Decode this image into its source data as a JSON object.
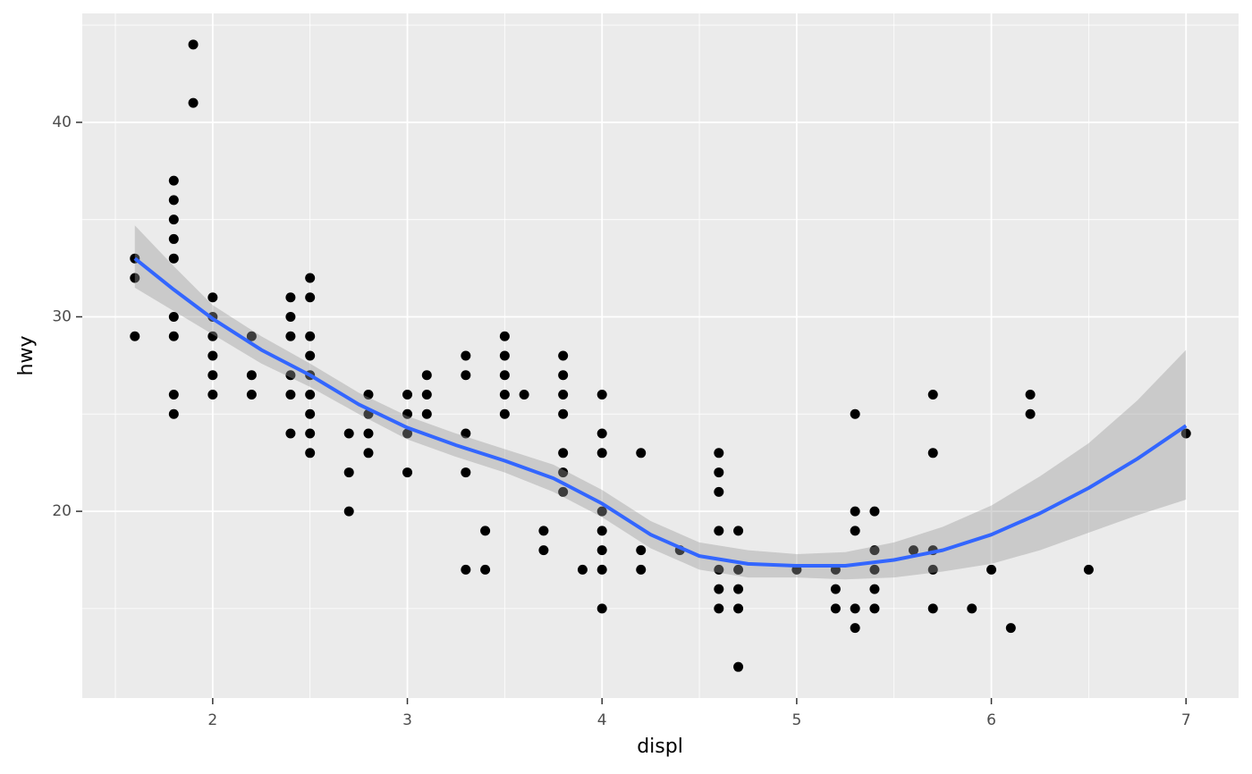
{
  "chart_data": {
    "type": "scatter",
    "x_label": "displ",
    "y_label": "hwy",
    "xlim": [
      1.33,
      7.27
    ],
    "ylim": [
      10.4,
      45.6
    ],
    "xticks": [
      2,
      3,
      4,
      5,
      6,
      7
    ],
    "yticks": [
      20,
      30,
      40
    ],
    "x_minor_grid": [
      1.5,
      2.5,
      3.5,
      4.5,
      5.5,
      6.5
    ],
    "y_minor_grid": [
      15,
      25,
      35,
      45
    ],
    "grid": true,
    "point_color": "#000000",
    "x": [
      1.6,
      1.6,
      1.6,
      1.8,
      1.8,
      1.8,
      1.8,
      1.8,
      1.8,
      1.8,
      1.8,
      1.8,
      1.9,
      1.9,
      2.0,
      2.0,
      2.0,
      2.0,
      2.0,
      2.0,
      2.2,
      2.2,
      2.2,
      2.4,
      2.4,
      2.4,
      2.4,
      2.4,
      2.4,
      2.5,
      2.5,
      2.5,
      2.5,
      2.5,
      2.5,
      2.5,
      2.5,
      2.5,
      2.7,
      2.7,
      2.7,
      2.8,
      2.8,
      2.8,
      2.8,
      3.0,
      3.0,
      3.0,
      3.0,
      3.1,
      3.1,
      3.1,
      3.3,
      3.3,
      3.3,
      3.3,
      3.3,
      3.4,
      3.4,
      3.5,
      3.5,
      3.5,
      3.5,
      3.5,
      3.6,
      3.7,
      3.7,
      3.8,
      3.8,
      3.8,
      3.8,
      3.8,
      3.8,
      3.8,
      3.9,
      4.0,
      4.0,
      4.0,
      4.0,
      4.0,
      4.0,
      4.0,
      4.0,
      4.2,
      4.2,
      4.2,
      4.4,
      4.6,
      4.6,
      4.6,
      4.6,
      4.6,
      4.6,
      4.6,
      4.7,
      4.7,
      4.7,
      4.7,
      4.7,
      5.0,
      5.2,
      5.2,
      5.2,
      5.3,
      5.3,
      5.3,
      5.3,
      5.3,
      5.4,
      5.4,
      5.4,
      5.4,
      5.4,
      5.6,
      5.7,
      5.7,
      5.7,
      5.7,
      5.7,
      5.9,
      6.0,
      6.1,
      6.2,
      6.2,
      6.5,
      7.0
    ],
    "y": [
      33,
      32,
      29,
      37,
      36,
      35,
      34,
      33,
      30,
      29,
      26,
      25,
      44,
      41,
      31,
      30,
      29,
      28,
      27,
      26,
      29,
      27,
      26,
      31,
      30,
      29,
      27,
      26,
      24,
      32,
      31,
      29,
      28,
      27,
      26,
      25,
      24,
      23,
      24,
      22,
      20,
      26,
      25,
      24,
      23,
      26,
      25,
      24,
      22,
      27,
      26,
      25,
      28,
      27,
      24,
      22,
      17,
      19,
      17,
      29,
      28,
      27,
      26,
      25,
      26,
      19,
      18,
      28,
      27,
      26,
      25,
      23,
      22,
      21,
      17,
      26,
      24,
      23,
      20,
      19,
      18,
      17,
      15,
      23,
      18,
      17,
      18,
      23,
      22,
      21,
      19,
      17,
      16,
      15,
      19,
      17,
      16,
      15,
      12,
      17,
      17,
      16,
      15,
      25,
      20,
      19,
      15,
      14,
      20,
      18,
      17,
      16,
      15,
      18,
      26,
      23,
      18,
      17,
      15,
      15,
      17,
      14,
      26,
      25,
      17,
      24
    ],
    "smooth": {
      "color": "#3366ff",
      "x": [
        1.6,
        1.8,
        2.0,
        2.25,
        2.5,
        2.75,
        3.0,
        3.25,
        3.5,
        3.75,
        4.0,
        4.25,
        4.5,
        4.75,
        5.0,
        5.25,
        5.5,
        5.75,
        6.0,
        6.25,
        6.5,
        6.75,
        7.0
      ],
      "y": [
        33.0,
        31.4,
        29.9,
        28.3,
        27.0,
        25.5,
        24.3,
        23.4,
        22.6,
        21.7,
        20.4,
        18.8,
        17.7,
        17.3,
        17.2,
        17.2,
        17.5,
        18.0,
        18.8,
        19.9,
        21.2,
        22.7,
        24.4
      ],
      "ymin": [
        31.5,
        30.3,
        29.1,
        27.6,
        26.4,
        25.0,
        23.7,
        22.8,
        22.0,
        21.0,
        19.7,
        18.1,
        17.0,
        16.6,
        16.6,
        16.5,
        16.6,
        16.9,
        17.3,
        18.0,
        18.9,
        19.8,
        20.6
      ],
      "ymax": [
        34.7,
        32.6,
        30.6,
        29.0,
        27.6,
        26.1,
        24.9,
        24.0,
        23.2,
        22.4,
        21.1,
        19.5,
        18.4,
        18.0,
        17.8,
        17.9,
        18.4,
        19.2,
        20.3,
        21.8,
        23.5,
        25.7,
        28.3
      ]
    }
  }
}
